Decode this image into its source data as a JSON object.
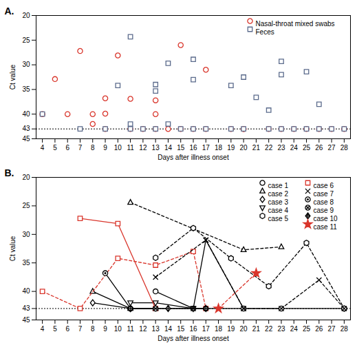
{
  "chart_data": [
    {
      "type": "scatter",
      "title": "A.",
      "x_label": "Days after illness onset",
      "y_label": "Ct value",
      "xlim": [
        3.5,
        28.5
      ],
      "xticks": [
        4,
        5,
        6,
        7,
        8,
        9,
        10,
        11,
        12,
        13,
        14,
        15,
        16,
        17,
        18,
        19,
        20,
        21,
        22,
        23,
        24,
        25,
        26,
        27,
        28
      ],
      "ylim": [
        45,
        20
      ],
      "yticks": [
        20,
        25,
        30,
        35,
        40,
        43,
        45
      ],
      "threshold": 43,
      "legend": "top-right",
      "series": [
        {
          "name": "Nasal-throat mixed swabs",
          "color": "#d9352b",
          "marker": "circle",
          "x": [
            4,
            5,
            6,
            7,
            8,
            8,
            9,
            9,
            9,
            10,
            11,
            11,
            12,
            13,
            13,
            13,
            14,
            15,
            15,
            16,
            17,
            17,
            19,
            20,
            20,
            22,
            23,
            24,
            25,
            26,
            27,
            28
          ],
          "values": [
            40,
            32.9,
            40,
            27.2,
            40,
            42,
            36.8,
            39.9,
            43,
            28.1,
            36.9,
            43,
            43,
            37.2,
            40,
            43,
            43,
            26,
            43,
            43,
            31,
            43,
            43,
            43,
            43,
            43,
            43,
            43,
            43,
            43,
            43,
            43
          ]
        },
        {
          "name": "Feces",
          "color": "#5b6b8c",
          "marker": "square",
          "x": [
            4,
            7,
            9,
            10,
            11,
            11,
            11,
            12,
            13,
            13,
            13,
            14,
            14,
            15,
            16,
            16,
            16,
            17,
            19,
            19,
            20,
            20,
            21,
            22,
            22,
            23,
            23,
            23,
            24,
            25,
            25,
            26,
            26,
            27,
            28
          ],
          "values": [
            40,
            43,
            43,
            34.2,
            24.3,
            42,
            43,
            43,
            34,
            35.3,
            43,
            29.7,
            42,
            43,
            28.9,
            33,
            43,
            43,
            34.2,
            43,
            32.5,
            43,
            36.6,
            39.2,
            43,
            29.3,
            32,
            43,
            43,
            31.4,
            43,
            38,
            43,
            43,
            43
          ]
        }
      ]
    },
    {
      "type": "line",
      "title": "B.",
      "x_label": "Days after illness onset",
      "y_label": "Ct value",
      "xlim": [
        3.5,
        28.5
      ],
      "xticks": [
        4,
        5,
        6,
        7,
        8,
        9,
        10,
        11,
        12,
        13,
        14,
        15,
        16,
        17,
        18,
        19,
        20,
        21,
        22,
        23,
        24,
        25,
        26,
        27,
        28
      ],
      "ylim": [
        45,
        20
      ],
      "yticks": [
        20,
        25,
        30,
        35,
        40,
        43,
        45
      ],
      "threshold": 43,
      "legend": "top-right",
      "series": [
        {
          "name": "case 1",
          "color": "#000000",
          "marker": "circle",
          "lines": [
            {
              "line_style": "solid",
              "x": [
                13,
                16,
                20,
                23,
                28
              ],
              "values": [
                40,
                43,
                43,
                43,
                43
              ]
            }
          ]
        },
        {
          "name": "case 2",
          "color": "#000000",
          "marker": "triangle",
          "lines": [
            {
              "line_style": "solid",
              "x": [
                8,
                11,
                13
              ],
              "values": [
                40,
                43,
                43
              ]
            },
            {
              "line_style": "dashed",
              "x": [
                11,
                20,
                23
              ],
              "values": [
                24.4,
                32.7,
                32.2
              ]
            }
          ]
        },
        {
          "name": "case 3",
          "color": "#000000",
          "marker": "diamond",
          "lines": [
            {
              "line_style": "solid",
              "x": [
                8,
                11
              ],
              "values": [
                42,
                43
              ]
            }
          ]
        },
        {
          "name": "case 4",
          "color": "#000000",
          "marker": "triangle-down",
          "lines": [
            {
              "line_style": "solid",
              "x": [
                11,
                13,
                16
              ],
              "values": [
                42,
                42,
                43
              ]
            }
          ]
        },
        {
          "name": "case 5",
          "color": "#000000",
          "marker": "hexagon",
          "lines": [
            {
              "line_style": "dashed",
              "x": [
                13,
                16,
                19,
                22,
                25,
                28
              ],
              "values": [
                34.1,
                28.9,
                34.2,
                39.1,
                31.5,
                43
              ]
            }
          ]
        },
        {
          "name": "case 6",
          "color": "#d9352b",
          "marker": "square",
          "lines": [
            {
              "line_style": "solid",
              "x": [
                7,
                10,
                13
              ],
              "values": [
                27.2,
                28.1,
                43
              ]
            },
            {
              "line_style": "dashed",
              "x": [
                4,
                7,
                10,
                13,
                16,
                17
              ],
              "values": [
                40,
                43,
                34.2,
                35.4,
                33,
                43
              ]
            }
          ]
        },
        {
          "name": "case 7",
          "color": "#000000",
          "marker": "times",
          "lines": [
            {
              "line_style": "solid",
              "x": [
                16,
                17,
                20
              ],
              "values": [
                43,
                31,
                43
              ]
            },
            {
              "line_style": "dashed",
              "x": [
                13,
                17,
                20,
                23,
                26,
                28
              ],
              "values": [
                37.5,
                31,
                43,
                43,
                38,
                43
              ]
            }
          ]
        },
        {
          "name": "case 8",
          "color": "#000000",
          "marker": "circle-dot",
          "lines": [
            {
              "line_style": "solid",
              "x": [
                9,
                11,
                13
              ],
              "values": [
                36.8,
                43,
                43
              ]
            }
          ]
        },
        {
          "name": "case 9",
          "color": "#000000",
          "marker": "circle-x",
          "lines": [
            {
              "line_style": "solid",
              "x": [
                11,
                13,
                17
              ],
              "values": [
                43,
                43,
                43
              ]
            }
          ]
        },
        {
          "name": "case 10",
          "color": "#000000",
          "marker": "diamond-plus",
          "lines": [
            {
              "line_style": "solid",
              "x": [
                11,
                14,
                17
              ],
              "values": [
                43,
                43,
                43
              ]
            }
          ]
        },
        {
          "name": "case 11",
          "color": "#d9352b",
          "marker": "star",
          "lines": [
            {
              "line_style": "dashed",
              "x": [
                18,
                21
              ],
              "values": [
                43,
                36.8
              ]
            }
          ]
        }
      ]
    }
  ]
}
